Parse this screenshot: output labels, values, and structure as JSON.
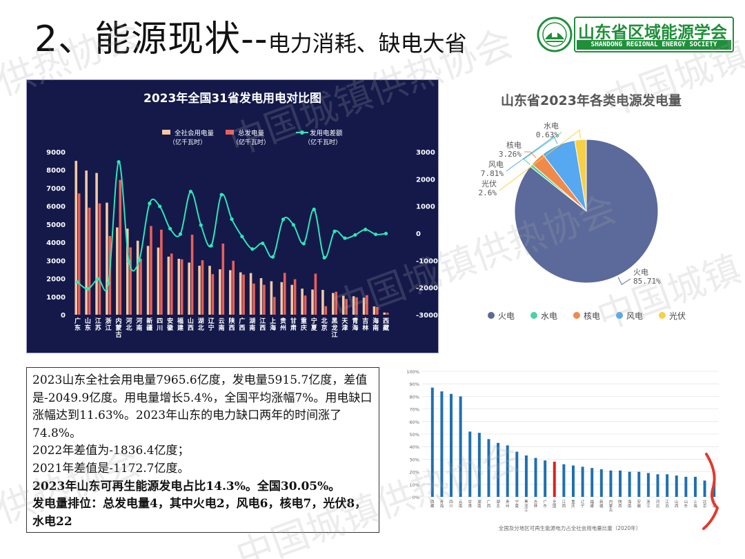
{
  "slide": {
    "title_main": "2、能源现状--",
    "title_sub": "电力消耗、缺电大省"
  },
  "logo": {
    "name_cn": "山东省区域能源学会",
    "name_en": "SHANDONG REGIONAL ENERGY SOCIETY"
  },
  "watermark_texts": [
    "供热协会",
    "中国城镇",
    "中国城镇供热协会",
    "中国城镇供热协会",
    "供热协会",
    "中国城镇",
    "中国城镇供热协会"
  ],
  "colors": {
    "panel_bg": "#14194a",
    "consumption": "#f5c9a3",
    "generation": "#e8605a",
    "difference": "#2ee6b8",
    "pie_coal": "#5b6a9a",
    "pie_hydro": "#4cd3a2",
    "pie_nuclear": "#f08a4b",
    "pie_wind": "#56a8f0",
    "pie_solar": "#f7d046",
    "bar_blue": "#1f6fb2",
    "bar_red": "#e02020"
  },
  "text_box": {
    "p1": "2023山东全社会用电量7965.6亿度，发电量5915.7亿度，差值是-2049.9亿度。用电量增长5.4%，全国平均涨幅7%。用电缺口涨幅达到11.63%。2023年山东的电力缺口两年的时间涨了74.8%。",
    "p2": "2022年差值为-1836.4亿度；",
    "p3": "2021年差值是-1172.7亿度。",
    "p4": "2023年山东可再生能源发电占比14.3%。全国30.05%。",
    "p5": "发电量排位：总发电量4，其中火电2，风电6，核电7，光伏8，水电22"
  },
  "chart_data": [
    {
      "type": "bar",
      "title": "2023年全国31省发电用电对比图",
      "legend": [
        {
          "name": "全社会用电量",
          "unit": "（亿千瓦时）"
        },
        {
          "name": "总发电量",
          "unit": "（亿千瓦时）"
        },
        {
          "name": "发用电差额",
          "unit": "（亿千瓦时）"
        }
      ],
      "categories": [
        "广东",
        "山东",
        "江苏",
        "浙江",
        "内蒙古",
        "河北",
        "河南",
        "新疆",
        "四川",
        "安徽",
        "福建",
        "山西",
        "湖北",
        "辽宁",
        "云南",
        "陕西",
        "广西",
        "湖南",
        "江西",
        "上海",
        "贵州",
        "甘肃",
        "重庆",
        "宁夏",
        "北京",
        "黑龙江",
        "天津",
        "青海",
        "吉林",
        "海南",
        "西藏"
      ],
      "series": [
        {
          "name": "全社会用电量",
          "axis": "left",
          "values": [
            8500,
            7966,
            7833,
            6192,
            4823,
            4757,
            4090,
            3800,
            3712,
            3210,
            3090,
            2880,
            2707,
            2700,
            2510,
            2460,
            2340,
            2300,
            2020,
            1850,
            1800,
            1650,
            1440,
            1390,
            1370,
            1200,
            1050,
            1020,
            940,
            460,
            120
          ]
        },
        {
          "name": "总发电量",
          "axis": "left",
          "values": [
            6700,
            5916,
            6150,
            4350,
            7450,
            3720,
            3100,
            4900,
            4700,
            3380,
            3060,
            4420,
            3010,
            2240,
            3930,
            2980,
            2220,
            1720,
            1650,
            980,
            2310,
            1960,
            1060,
            2270,
            470,
            1270,
            870,
            960,
            1080,
            420,
            110
          ]
        },
        {
          "name": "发用电差额",
          "axis": "right",
          "type": "line",
          "values": [
            -1800,
            -2050,
            -1680,
            -1840,
            2630,
            -1040,
            -990,
            1100,
            990,
            170,
            -30,
            1540,
            300,
            -460,
            1420,
            520,
            -120,
            -580,
            -370,
            -870,
            510,
            310,
            -380,
            880,
            -900,
            70,
            -180,
            -60,
            140,
            -40,
            -10
          ]
        }
      ],
      "ylim_left": [
        0,
        9000
      ],
      "ylim_right": [
        -3000,
        3000
      ],
      "yticks_left": [
        0,
        1000,
        2000,
        3000,
        4000,
        5000,
        6000,
        7000,
        8000,
        9000
      ],
      "yticks_right": [
        -3000,
        -2000,
        -1000,
        0,
        1000,
        2000,
        3000
      ]
    },
    {
      "type": "pie",
      "title": "山东省2023年各类电源发电量",
      "slices": [
        {
          "name": "火电",
          "value": 85.71,
          "label": "火电",
          "pct": "85.71%"
        },
        {
          "name": "水电",
          "value": 0.63,
          "label": "水电",
          "pct": "0.63%"
        },
        {
          "name": "核电",
          "value": 3.26,
          "label": "核电",
          "pct": "3.26%"
        },
        {
          "name": "风电",
          "value": 7.81,
          "label": "风电",
          "pct": "7.81%"
        },
        {
          "name": "光伏",
          "value": 2.6,
          "label": "光伏",
          "pct": "2.6%"
        }
      ],
      "legend_order": [
        "火电",
        "水电",
        "核电",
        "风电",
        "光伏"
      ]
    },
    {
      "type": "bar",
      "title": "全国及分地区可再生能源电力占全社会用电量比重（2020年）",
      "yticks": [
        "0%",
        "10%",
        "20%",
        "30%",
        "40%",
        "50%",
        "60%",
        "70%",
        "80%",
        "90%",
        "100%"
      ],
      "ylim": [
        0,
        100
      ],
      "categories": [
        "西藏",
        "青海",
        "四川",
        "云南",
        "甘肃",
        "湖南",
        "广西",
        "湖北",
        "贵州",
        "宁夏",
        "黑龙江",
        "吉林",
        "广东",
        "全国",
        "江西",
        "重庆",
        "辽宁",
        "福建",
        "新疆",
        "内蒙古",
        "陕西",
        "海南",
        "安徽",
        "浙江",
        "河北",
        "江苏",
        "山西",
        "山东",
        "上海",
        "北京",
        "天津"
      ],
      "values": [
        87,
        84,
        82,
        80,
        52,
        51,
        46,
        43,
        41,
        36,
        33,
        31,
        29,
        28,
        26,
        25,
        24,
        23,
        22,
        21,
        21,
        20,
        20,
        19,
        18,
        18,
        17,
        16,
        16,
        13,
        12
      ],
      "highlight_index": 13
    }
  ]
}
